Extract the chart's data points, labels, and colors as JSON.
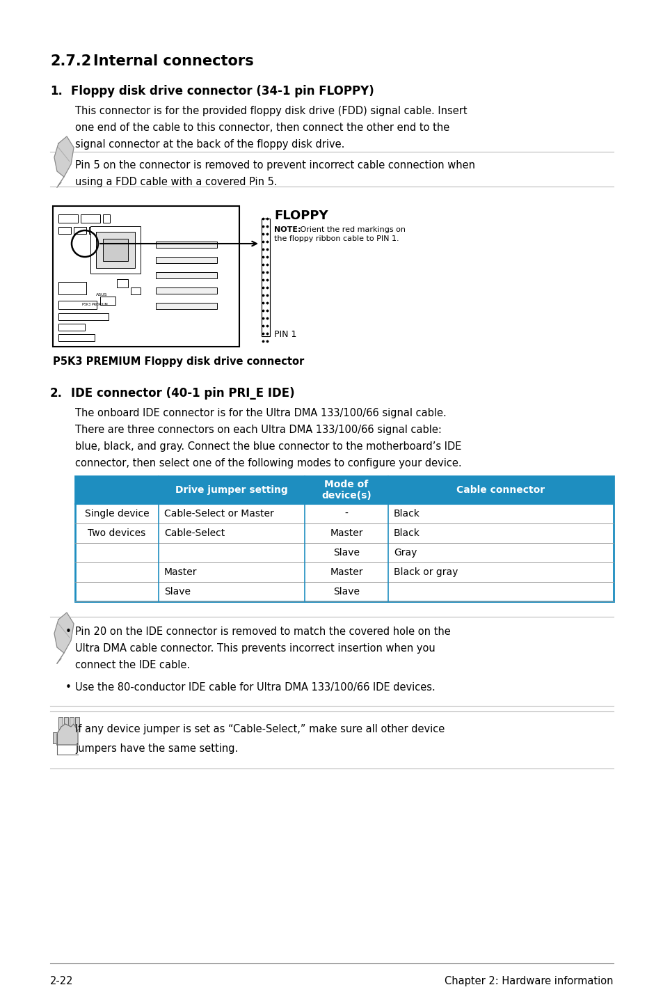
{
  "bg_color": "#ffffff",
  "section_title_num": "2.7.2",
  "section_title_text": "Internal connectors",
  "heading1_num": "1.",
  "heading1_text": "Floppy disk drive connector (34-1 pin FLOPPY)",
  "para1_line1": "This connector is for the provided floppy disk drive (FDD) signal cable. Insert",
  "para1_line2": "one end of the cable to this connector, then connect the other end to the",
  "para1_line3": "signal connector at the back of the floppy disk drive.",
  "note1_line1": "Pin 5 on the connector is removed to prevent incorrect cable connection when",
  "note1_line2": "using a FDD cable with a covered Pin 5.",
  "floppy_label": "FLOPPY",
  "floppy_note_bold": "NOTE:",
  "floppy_note_rest": " Orient the red markings on\nthe floppy ribbon cable to PIN 1.",
  "floppy_pin1": "PIN 1",
  "floppy_caption": "P5K3 PREMIUM Floppy disk drive connector",
  "heading2_num": "2.",
  "heading2_text": "IDE connector (40-1 pin PRI_E IDE)",
  "para2_line1": "The onboard IDE connector is for the Ultra DMA 133/100/66 signal cable.",
  "para2_line2": "There are three connectors on each Ultra DMA 133/100/66 signal cable:",
  "para2_line3": "blue, black, and gray. Connect the blue connector to the motherboard’s IDE",
  "para2_line4": "connector, then select one of the following modes to configure your device.",
  "table_header_bg": "#1e8ec0",
  "table_header_color": "#ffffff",
  "table_col0_header": "",
  "table_col1_header": "Drive jumper setting",
  "table_col2_header": "Mode of\ndevice(s)",
  "table_col3_header": "Cable connector",
  "table_rows": [
    [
      "Single device",
      "Cable-Select or Master",
      "-",
      "Black"
    ],
    [
      "Two devices",
      "Cable-Select",
      "Master",
      "Black"
    ],
    [
      "",
      "",
      "Slave",
      "Gray"
    ],
    [
      "",
      "Master",
      "Master",
      "Black or gray"
    ],
    [
      "",
      "Slave",
      "Slave",
      ""
    ]
  ],
  "table_border_color": "#1e8ec0",
  "table_inner_line_color": "#999999",
  "note2_bullet1_line1": "Pin 20 on the IDE connector is removed to match the covered hole on the",
  "note2_bullet1_line2": "Ultra DMA cable connector. This prevents incorrect insertion when you",
  "note2_bullet1_line3": "connect the IDE cable.",
  "note2_bullet2": "Use the 80-conductor IDE cable for Ultra DMA 133/100/66 IDE devices.",
  "note3_line1": "If any device jumper is set as “Cable-Select,” make sure all other device",
  "note3_line2": "jumpers have the same setting.",
  "footer_left": "2-22",
  "footer_right": "Chapter 2: Hardware information",
  "sep_line_color": "#bbbbbb",
  "footer_line_color": "#777777"
}
